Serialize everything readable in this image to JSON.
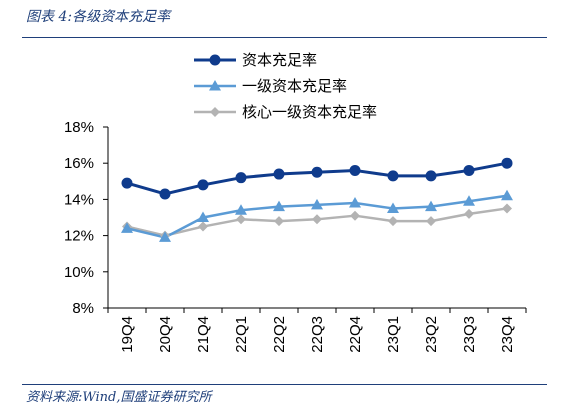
{
  "figure": {
    "title": "图表 4:各级资本充足率",
    "source": "资料来源:Wind,国盛证券研究所"
  },
  "chart_data": {
    "type": "line",
    "title": "",
    "xlabel": "",
    "ylabel": "",
    "categories": [
      "19Q4",
      "20Q4",
      "21Q4",
      "22Q1",
      "22Q2",
      "22Q3",
      "22Q4",
      "23Q1",
      "23Q2",
      "23Q3",
      "23Q4"
    ],
    "ylim": [
      8,
      18
    ],
    "yticks": [
      "8%",
      "10%",
      "12%",
      "14%",
      "16%",
      "18%"
    ],
    "grid": false,
    "legend": "top-right",
    "series": [
      {
        "name": "资本充足率",
        "color": "#0f3b8c",
        "marker": "circle",
        "values": [
          14.9,
          14.3,
          14.8,
          15.2,
          15.4,
          15.5,
          15.6,
          15.3,
          15.3,
          15.6,
          16.0
        ]
      },
      {
        "name": "一级资本充足率",
        "color": "#5b9bd5",
        "marker": "triangle",
        "values": [
          12.4,
          11.9,
          13.0,
          13.4,
          13.6,
          13.7,
          13.8,
          13.5,
          13.6,
          13.9,
          14.2
        ]
      },
      {
        "name": "核心一级资本充足率",
        "color": "#b3b3b3",
        "marker": "diamond",
        "values": [
          12.5,
          12.0,
          12.5,
          12.9,
          12.8,
          12.9,
          13.1,
          12.8,
          12.8,
          13.2,
          13.5
        ]
      }
    ]
  }
}
